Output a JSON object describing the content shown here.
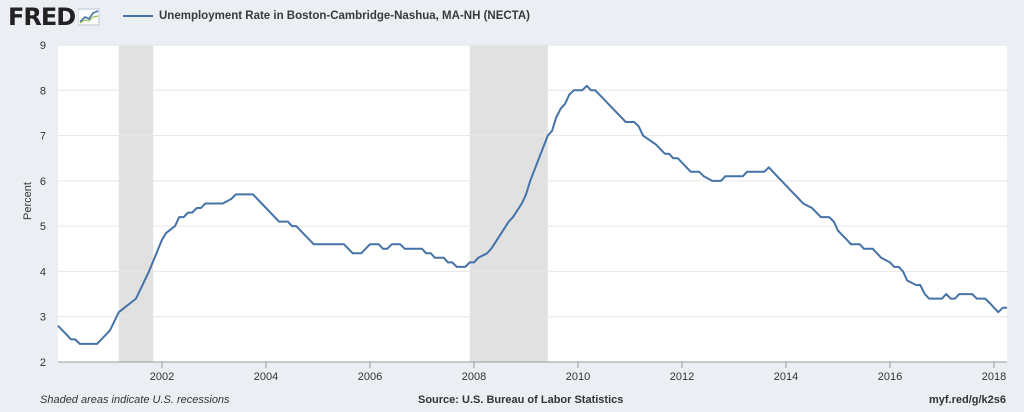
{
  "header": {
    "logo_text": "FRED",
    "logo_icon": "fred-graph-icon",
    "legend_label": "Unemployment Rate in Boston-Cambridge-Nashua, MA-NH (NECTA)"
  },
  "footer": {
    "left": "Shaded areas indicate U.S. recessions",
    "source": "Source: U.S. Bureau of Labor Statistics",
    "short_url": "myf.red/g/k2s6"
  },
  "colors": {
    "line": "#4572a7",
    "recession": "#e1e1e1",
    "plot_bg": "#ffffff",
    "page_bg": "#ebeef2"
  },
  "chart_data": {
    "type": "line",
    "title": "",
    "xlabel": "",
    "ylabel": "Percent",
    "ylim": [
      2,
      9
    ],
    "xlim": [
      2000.0,
      2018.25
    ],
    "yticks": [
      2,
      3,
      4,
      5,
      6,
      7,
      8,
      9
    ],
    "xticks": [
      2002,
      2004,
      2006,
      2008,
      2010,
      2012,
      2014,
      2016,
      2018
    ],
    "grid": true,
    "legend": "top-left",
    "recessions": [
      [
        2001.17,
        2001.83
      ],
      [
        2007.92,
        2009.42
      ]
    ],
    "series": [
      {
        "name": "Unemployment Rate in Boston-Cambridge-Nashua, MA-NH (NECTA)",
        "points": [
          [
            2000.0,
            2.8
          ],
          [
            2000.17,
            2.6
          ],
          [
            2000.25,
            2.5
          ],
          [
            2000.33,
            2.5
          ],
          [
            2000.42,
            2.4
          ],
          [
            2000.75,
            2.4
          ],
          [
            2000.92,
            2.6
          ],
          [
            2001.0,
            2.7
          ],
          [
            2001.17,
            3.1
          ],
          [
            2001.5,
            3.4
          ],
          [
            2001.75,
            4.0
          ],
          [
            2002.0,
            4.7
          ],
          [
            2002.08,
            4.85
          ],
          [
            2002.25,
            5.0
          ],
          [
            2002.33,
            5.2
          ],
          [
            2002.42,
            5.2
          ],
          [
            2002.5,
            5.3
          ],
          [
            2002.58,
            5.3
          ],
          [
            2002.67,
            5.4
          ],
          [
            2002.75,
            5.4
          ],
          [
            2002.83,
            5.5
          ],
          [
            2003.17,
            5.5
          ],
          [
            2003.33,
            5.6
          ],
          [
            2003.42,
            5.7
          ],
          [
            2003.75,
            5.7
          ],
          [
            2004.0,
            5.4
          ],
          [
            2004.25,
            5.1
          ],
          [
            2004.42,
            5.1
          ],
          [
            2004.5,
            5.0
          ],
          [
            2004.58,
            5.0
          ],
          [
            2004.92,
            4.6
          ],
          [
            2005.5,
            4.6
          ],
          [
            2005.67,
            4.4
          ],
          [
            2005.83,
            4.4
          ],
          [
            2006.0,
            4.6
          ],
          [
            2006.17,
            4.6
          ],
          [
            2006.25,
            4.5
          ],
          [
            2006.33,
            4.5
          ],
          [
            2006.42,
            4.6
          ],
          [
            2006.58,
            4.6
          ],
          [
            2006.67,
            4.5
          ],
          [
            2007.0,
            4.5
          ],
          [
            2007.08,
            4.4
          ],
          [
            2007.17,
            4.4
          ],
          [
            2007.25,
            4.3
          ],
          [
            2007.42,
            4.3
          ],
          [
            2007.5,
            4.2
          ],
          [
            2007.58,
            4.2
          ],
          [
            2007.67,
            4.1
          ],
          [
            2007.83,
            4.1
          ],
          [
            2007.92,
            4.2
          ],
          [
            2008.0,
            4.2
          ],
          [
            2008.08,
            4.3
          ],
          [
            2008.25,
            4.4
          ],
          [
            2008.33,
            4.5
          ],
          [
            2008.5,
            4.8
          ],
          [
            2008.67,
            5.1
          ],
          [
            2008.75,
            5.2
          ],
          [
            2008.92,
            5.5
          ],
          [
            2009.0,
            5.7
          ],
          [
            2009.08,
            6.0
          ],
          [
            2009.25,
            6.5
          ],
          [
            2009.42,
            7.0
          ],
          [
            2009.5,
            7.1
          ],
          [
            2009.58,
            7.4
          ],
          [
            2009.67,
            7.6
          ],
          [
            2009.75,
            7.7
          ],
          [
            2009.83,
            7.9
          ],
          [
            2009.92,
            8.0
          ],
          [
            2010.08,
            8.0
          ],
          [
            2010.17,
            8.1
          ],
          [
            2010.25,
            8.0
          ],
          [
            2010.33,
            8.0
          ],
          [
            2010.5,
            7.8
          ],
          [
            2010.75,
            7.5
          ],
          [
            2010.92,
            7.3
          ],
          [
            2011.08,
            7.3
          ],
          [
            2011.17,
            7.2
          ],
          [
            2011.25,
            7.0
          ],
          [
            2011.5,
            6.8
          ],
          [
            2011.67,
            6.6
          ],
          [
            2011.75,
            6.6
          ],
          [
            2011.83,
            6.5
          ],
          [
            2011.92,
            6.5
          ],
          [
            2012.0,
            6.4
          ],
          [
            2012.17,
            6.2
          ],
          [
            2012.33,
            6.2
          ],
          [
            2012.42,
            6.1
          ],
          [
            2012.58,
            6.0
          ],
          [
            2012.75,
            6.0
          ],
          [
            2012.83,
            6.1
          ],
          [
            2013.17,
            6.1
          ],
          [
            2013.25,
            6.2
          ],
          [
            2013.58,
            6.2
          ],
          [
            2013.67,
            6.3
          ],
          [
            2013.83,
            6.1
          ],
          [
            2014.0,
            5.9
          ],
          [
            2014.08,
            5.8
          ],
          [
            2014.25,
            5.6
          ],
          [
            2014.33,
            5.5
          ],
          [
            2014.5,
            5.4
          ],
          [
            2014.67,
            5.2
          ],
          [
            2014.83,
            5.2
          ],
          [
            2014.92,
            5.1
          ],
          [
            2015.0,
            4.9
          ],
          [
            2015.17,
            4.7
          ],
          [
            2015.25,
            4.6
          ],
          [
            2015.42,
            4.6
          ],
          [
            2015.5,
            4.5
          ],
          [
            2015.67,
            4.5
          ],
          [
            2015.83,
            4.3
          ],
          [
            2016.0,
            4.2
          ],
          [
            2016.08,
            4.1
          ],
          [
            2016.17,
            4.1
          ],
          [
            2016.25,
            4.0
          ],
          [
            2016.33,
            3.8
          ],
          [
            2016.5,
            3.7
          ],
          [
            2016.58,
            3.7
          ],
          [
            2016.67,
            3.5
          ],
          [
            2016.75,
            3.4
          ],
          [
            2017.0,
            3.4
          ],
          [
            2017.08,
            3.5
          ],
          [
            2017.17,
            3.4
          ],
          [
            2017.25,
            3.4
          ],
          [
            2017.33,
            3.5
          ],
          [
            2017.58,
            3.5
          ],
          [
            2017.67,
            3.4
          ],
          [
            2017.83,
            3.4
          ],
          [
            2017.92,
            3.3
          ],
          [
            2018.0,
            3.2
          ],
          [
            2018.08,
            3.1
          ],
          [
            2018.17,
            3.2
          ],
          [
            2018.25,
            3.2
          ]
        ]
      }
    ]
  }
}
